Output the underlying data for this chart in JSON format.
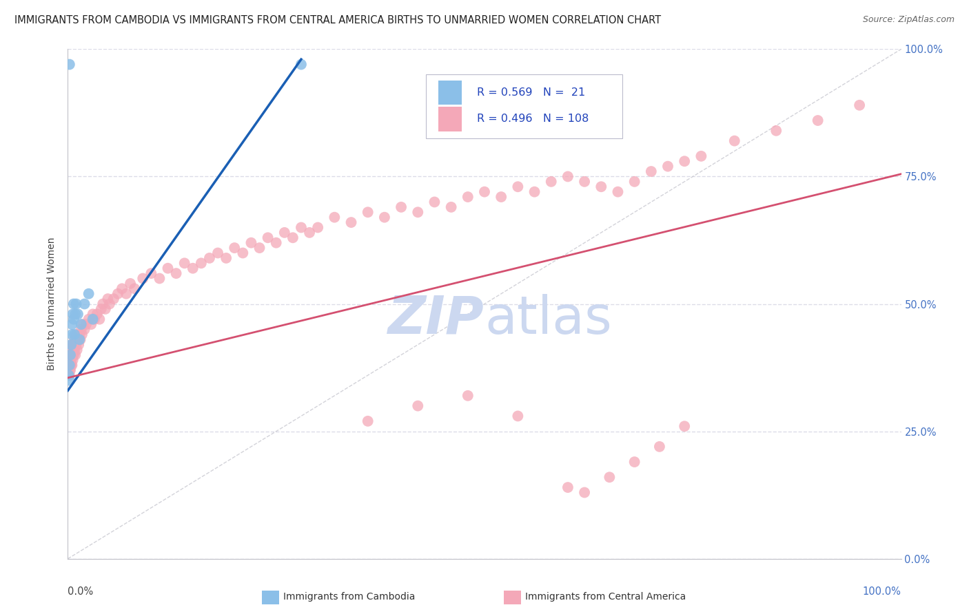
{
  "title": "IMMIGRANTS FROM CAMBODIA VS IMMIGRANTS FROM CENTRAL AMERICA BIRTHS TO UNMARRIED WOMEN CORRELATION CHART",
  "source": "Source: ZipAtlas.com",
  "ylabel": "Births to Unmarried Women",
  "legend_label1": "Immigrants from Cambodia",
  "legend_label2": "Immigrants from Central America",
  "R1": 0.569,
  "N1": 21,
  "R2": 0.496,
  "N2": 108,
  "color_cambodia": "#8bbfe8",
  "color_central_america": "#f4a8b8",
  "color_cambodia_line": "#1a5fb4",
  "color_central_america_line": "#d45070",
  "color_diagonal": "#c8c8d0",
  "watermark_color": "#ccd8f0",
  "background_color": "#ffffff",
  "grid_color": "#dcdce8",
  "ytick_values": [
    0.0,
    0.25,
    0.5,
    0.75,
    1.0
  ],
  "ytick_labels_right": [
    "0.0%",
    "25.0%",
    "50.0%",
    "75.0%",
    "100.0%"
  ],
  "cam_blue_line_x": [
    0.0,
    0.28
  ],
  "cam_blue_line_y": [
    0.33,
    0.98
  ],
  "ca_pink_line_x": [
    0.0,
    1.0
  ],
  "ca_pink_line_y": [
    0.355,
    0.755
  ],
  "cam_scatter_x": [
    0.001,
    0.002,
    0.003,
    0.004,
    0.005,
    0.005,
    0.006,
    0.007,
    0.007,
    0.008,
    0.009,
    0.01,
    0.012,
    0.014,
    0.016,
    0.02,
    0.025,
    0.03,
    0.002,
    0.28,
    0.002
  ],
  "cam_scatter_y": [
    0.36,
    0.38,
    0.4,
    0.42,
    0.44,
    0.46,
    0.48,
    0.5,
    0.47,
    0.44,
    0.48,
    0.5,
    0.48,
    0.43,
    0.46,
    0.5,
    0.52,
    0.47,
    0.97,
    0.97,
    0.35
  ],
  "ca_scatter_x": [
    0.001,
    0.001,
    0.002,
    0.002,
    0.002,
    0.003,
    0.003,
    0.003,
    0.004,
    0.004,
    0.005,
    0.005,
    0.005,
    0.006,
    0.006,
    0.007,
    0.007,
    0.008,
    0.008,
    0.009,
    0.01,
    0.01,
    0.011,
    0.012,
    0.013,
    0.014,
    0.015,
    0.016,
    0.017,
    0.018,
    0.02,
    0.022,
    0.025,
    0.028,
    0.03,
    0.032,
    0.035,
    0.038,
    0.04,
    0.042,
    0.045,
    0.048,
    0.05,
    0.055,
    0.06,
    0.065,
    0.07,
    0.075,
    0.08,
    0.09,
    0.1,
    0.11,
    0.12,
    0.13,
    0.14,
    0.15,
    0.16,
    0.17,
    0.18,
    0.19,
    0.2,
    0.21,
    0.22,
    0.23,
    0.24,
    0.25,
    0.26,
    0.27,
    0.28,
    0.29,
    0.3,
    0.32,
    0.34,
    0.36,
    0.38,
    0.4,
    0.42,
    0.44,
    0.46,
    0.48,
    0.5,
    0.52,
    0.54,
    0.56,
    0.58,
    0.6,
    0.62,
    0.64,
    0.66,
    0.68,
    0.7,
    0.72,
    0.74,
    0.76,
    0.8,
    0.85,
    0.9,
    0.95,
    0.36,
    0.42,
    0.48,
    0.54,
    0.6,
    0.62,
    0.65,
    0.68,
    0.71,
    0.74
  ],
  "ca_scatter_y": [
    0.36,
    0.38,
    0.37,
    0.39,
    0.36,
    0.38,
    0.4,
    0.37,
    0.39,
    0.38,
    0.4,
    0.42,
    0.38,
    0.41,
    0.39,
    0.42,
    0.4,
    0.41,
    0.43,
    0.4,
    0.42,
    0.44,
    0.41,
    0.43,
    0.42,
    0.44,
    0.43,
    0.45,
    0.44,
    0.46,
    0.45,
    0.46,
    0.47,
    0.46,
    0.48,
    0.47,
    0.48,
    0.47,
    0.49,
    0.5,
    0.49,
    0.51,
    0.5,
    0.51,
    0.52,
    0.53,
    0.52,
    0.54,
    0.53,
    0.55,
    0.56,
    0.55,
    0.57,
    0.56,
    0.58,
    0.57,
    0.58,
    0.59,
    0.6,
    0.59,
    0.61,
    0.6,
    0.62,
    0.61,
    0.63,
    0.62,
    0.64,
    0.63,
    0.65,
    0.64,
    0.65,
    0.67,
    0.66,
    0.68,
    0.67,
    0.69,
    0.68,
    0.7,
    0.69,
    0.71,
    0.72,
    0.71,
    0.73,
    0.72,
    0.74,
    0.75,
    0.74,
    0.73,
    0.72,
    0.74,
    0.76,
    0.77,
    0.78,
    0.79,
    0.82,
    0.84,
    0.86,
    0.89,
    0.27,
    0.3,
    0.32,
    0.28,
    0.14,
    0.13,
    0.16,
    0.19,
    0.22,
    0.26
  ],
  "xlim": [
    0.0,
    1.0
  ],
  "ylim": [
    0.0,
    1.0
  ]
}
